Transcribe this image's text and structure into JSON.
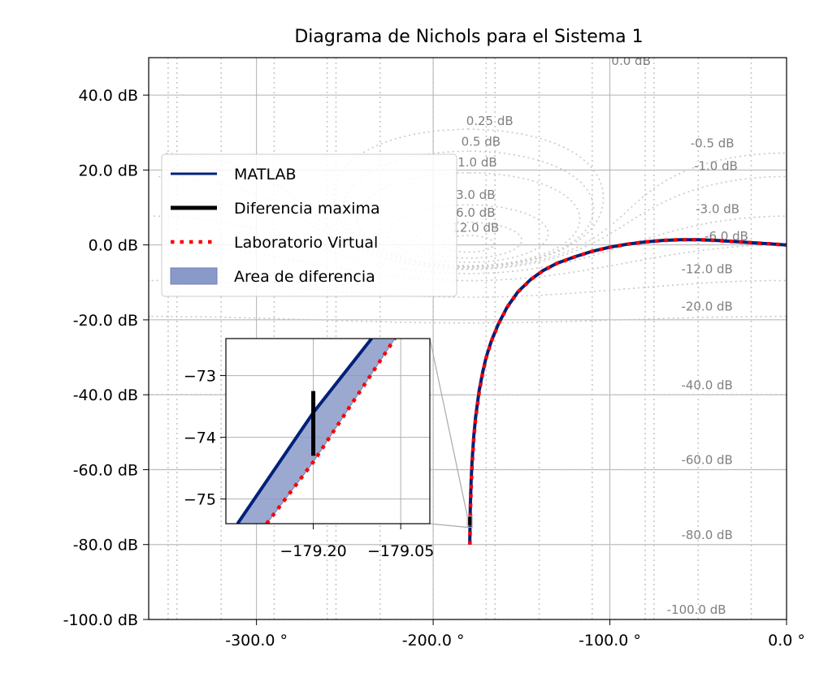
{
  "chart_data": {
    "type": "line",
    "title": "Diagrama de Nichols para el Sistema 1",
    "xlabel": "",
    "ylabel": "",
    "xlim": [
      -361,
      0
    ],
    "ylim": [
      -100,
      50
    ],
    "grid": true,
    "x_ticks": [
      {
        "value": -300,
        "label": "-300.0 °"
      },
      {
        "value": -200,
        "label": "-200.0 °"
      },
      {
        "value": -100,
        "label": "-100.0 °"
      },
      {
        "value": 0,
        "label": "0.0 °"
      }
    ],
    "y_ticks": [
      {
        "value": 40,
        "label": "40.0 dB"
      },
      {
        "value": 20,
        "label": "20.0 dB"
      },
      {
        "value": 0,
        "label": "0.0 dB"
      },
      {
        "value": -20,
        "label": "-20.0 dB"
      },
      {
        "value": -40,
        "label": "-40.0 dB"
      },
      {
        "value": -60,
        "label": "-60.0 dB"
      },
      {
        "value": -80,
        "label": "-80.0 dB"
      },
      {
        "value": -100,
        "label": "-100.0 dB"
      }
    ],
    "contour_labels": [
      {
        "text": "0.0 dB",
        "x": -88,
        "y": 48
      },
      {
        "text": "0.25 dB",
        "x": -168,
        "y": 32
      },
      {
        "text": "0.5 dB",
        "x": -173,
        "y": 26.5
      },
      {
        "text": "1.0 dB",
        "x": -175,
        "y": 21
      },
      {
        "text": "3.0 dB",
        "x": -176,
        "y": 12.3
      },
      {
        "text": "6.0 dB",
        "x": -176,
        "y": 7.5
      },
      {
        "text": "12.0 dB",
        "x": -176,
        "y": 3.5
      },
      {
        "text": "-0.5 dB",
        "x": -42,
        "y": 26
      },
      {
        "text": "-1.0 dB",
        "x": -40,
        "y": 20
      },
      {
        "text": "-3.0 dB",
        "x": -39,
        "y": 8.5
      },
      {
        "text": "-6.0 dB",
        "x": -34,
        "y": 1.2
      },
      {
        "text": "-12.0 dB",
        "x": -45,
        "y": -7.5
      },
      {
        "text": "-20.0 dB",
        "x": -45,
        "y": -17.5
      },
      {
        "text": "-40.0 dB",
        "x": -45,
        "y": -38.5
      },
      {
        "text": "-60.0 dB",
        "x": -45,
        "y": -58.5
      },
      {
        "text": "-80.0 dB",
        "x": -45,
        "y": -78.5
      },
      {
        "text": "-100.0 dB",
        "x": -51,
        "y": -98.5
      }
    ],
    "series": [
      {
        "name": "MATLAB",
        "color": "#00207a",
        "x": [
          -179.3,
          -179,
          -178.5,
          -178,
          -177,
          -176,
          -174,
          -172,
          -170,
          -167,
          -163,
          -158,
          -152,
          -145,
          -138,
          -130,
          -120,
          -110,
          -100,
          -90,
          -80,
          -70,
          -60,
          -50,
          -40,
          -30,
          -20,
          -10,
          0
        ],
        "y": [
          -80,
          -70,
          -63,
          -58,
          -51,
          -46,
          -39,
          -34,
          -30,
          -25.5,
          -21,
          -16.5,
          -12.5,
          -9.3,
          -6.9,
          -4.9,
          -3.2,
          -1.7,
          -0.6,
          0.2,
          0.8,
          1.2,
          1.4,
          1.4,
          1.2,
          0.9,
          0.6,
          0.3,
          0
        ]
      },
      {
        "name": "Laboratorio Virtual",
        "color": "#ff0000",
        "x": [
          -179.2,
          -178.9,
          -178.4,
          -177.9,
          -176.9,
          -175.9,
          -173.9,
          -171.9,
          -169.9,
          -166.9,
          -162.9,
          -157.9,
          -151.9,
          -144.9,
          -137.9,
          -129.9,
          -119.9,
          -109.9,
          -99.9,
          -89.9,
          -79.9,
          -69.9,
          -59.9,
          -49.9,
          -39.9,
          -29.9,
          -19.9,
          -9.9,
          0
        ],
        "y": [
          -80,
          -70,
          -63,
          -58,
          -51,
          -46,
          -39,
          -34,
          -30,
          -25.5,
          -21,
          -16.5,
          -12.5,
          -9.3,
          -6.9,
          -4.9,
          -3.2,
          -1.7,
          -0.6,
          0.2,
          0.8,
          1.2,
          1.4,
          1.4,
          1.2,
          0.9,
          0.6,
          0.3,
          0
        ]
      }
    ],
    "legend": {
      "placement": "upper-left",
      "entries": [
        {
          "label": "MATLAB",
          "style": "line",
          "color": "#00207a"
        },
        {
          "label": "Diferencia maxima",
          "style": "line",
          "color": "#000000"
        },
        {
          "label": "Laboratorio Virtual",
          "style": "dotted",
          "color": "#ff0000"
        },
        {
          "label": "Area de diferencia",
          "style": "patch",
          "color": "#8a9ac8"
        }
      ]
    },
    "inset": {
      "xlim": [
        -179.35,
        -179.0
      ],
      "ylim": [
        -75.4,
        -72.4
      ],
      "x_ticks": [
        {
          "value": -179.2,
          "label": "−179.20"
        },
        {
          "value": -179.05,
          "label": "−179.05"
        }
      ],
      "y_ticks": [
        {
          "value": -73,
          "label": "−73"
        },
        {
          "value": -74,
          "label": "−74"
        },
        {
          "value": -75,
          "label": "−75"
        }
      ],
      "matlab": {
        "x": [
          -179.33,
          -179.2,
          -179.1
        ],
        "y": [
          -75.4,
          -73.6,
          -72.4
        ]
      },
      "virtual": {
        "x": [
          -179.28,
          -179.2,
          -179.13,
          -179.06
        ],
        "y": [
          -75.4,
          -74.4,
          -73.4,
          -72.4
        ]
      },
      "max_diff": {
        "x": -179.2,
        "y1": -73.25,
        "y2": -74.3
      }
    }
  }
}
